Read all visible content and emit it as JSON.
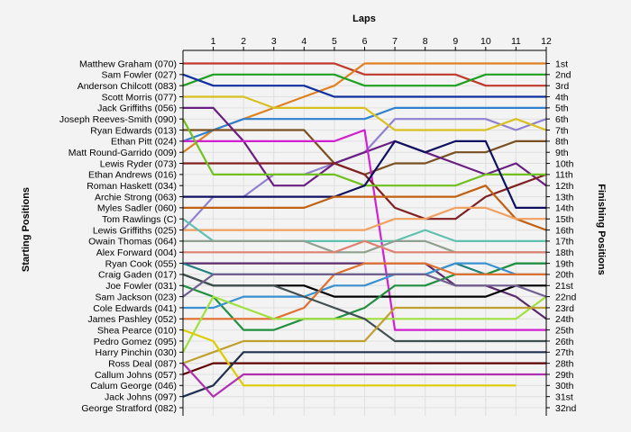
{
  "chart_data": {
    "type": "line",
    "title": "Laps",
    "xlabel": "Laps",
    "ylabel_left": "Starting Positions",
    "ylabel_right": "Finishing Positions",
    "laps": [
      0,
      1,
      2,
      3,
      4,
      5,
      6,
      7,
      8,
      9,
      10,
      11,
      12
    ],
    "lap_ticks": [
      "1",
      "2",
      "3",
      "4",
      "5",
      "6",
      "7",
      "8",
      "9",
      "10",
      "11",
      "12"
    ],
    "starting_positions": [
      "Matthew Graham (070)",
      "Sam Fowler (027)",
      "Anderson Chilcott (083)",
      "Scott Morris (077)",
      "Jack Griffiths (056)",
      "Joseph Reeves-Smith (090)",
      "Ryan Edwards (013)",
      "Ethan Pitt (024)",
      "Matt Round-Garrido (009)",
      "Lewis Ryder (073)",
      "Ethan Andrews (016)",
      "Roman Haskett (034)",
      "Archie Strong (063)",
      "Myles Sadler (060)",
      "Tom Rawlings (C)",
      "Lewis Griffiths (025)",
      "Owain Thomas (064)",
      "Alex Forward (004)",
      "Ryan Cook (055)",
      "Craig Gaden (017)",
      "Joe Fowler (031)",
      "Sam Jackson (023)",
      "Cole Edwards (041)",
      "James Pashley (052)",
      "Shea Pearce (010)",
      "Pedro Gomez (095)",
      "Harry Pinchin (030)",
      "Ross Deal (087)",
      "Callum Johns (057)",
      "Calum George (046)",
      "Jack Johns (097)",
      "George Stratford (082)"
    ],
    "finishing_positions": [
      "1st",
      "2nd",
      "3rd",
      "4th",
      "5th",
      "6th",
      "7th",
      "8th",
      "9th",
      "10th",
      "11th",
      "12th",
      "13th",
      "14th",
      "15th",
      "16th",
      "17th",
      "18th",
      "19th",
      "20th",
      "21st",
      "22nd",
      "23rd",
      "24th",
      "25th",
      "26th",
      "27th",
      "28th",
      "29th",
      "30th",
      "31st",
      "32nd"
    ],
    "series": [
      {
        "color": "#c0392b",
        "positions": [
          1,
          1,
          1,
          1,
          1,
          1,
          2,
          2,
          2,
          2,
          3,
          3,
          3
        ]
      },
      {
        "color": "#e08020",
        "positions": [
          9,
          7,
          6,
          5,
          4,
          3,
          1,
          1,
          1,
          1,
          1,
          1,
          1
        ]
      },
      {
        "color": "#20a020",
        "positions": [
          3,
          2,
          2,
          2,
          2,
          2,
          3,
          3,
          3,
          3,
          2,
          2,
          2
        ]
      },
      {
        "color": "#1030a0",
        "positions": [
          2,
          3,
          3,
          3,
          3,
          4,
          4,
          4,
          4,
          4,
          4,
          4,
          4
        ]
      },
      {
        "color": "#3080d0",
        "positions": [
          8,
          7,
          6,
          6,
          6,
          6,
          6,
          5,
          5,
          5,
          5,
          5,
          5
        ]
      },
      {
        "color": "#9080d0",
        "positions": [
          16,
          13,
          13,
          11,
          11,
          10,
          9,
          6,
          6,
          6,
          6,
          7,
          6
        ]
      },
      {
        "color": "#d8c020",
        "positions": [
          4,
          4,
          4,
          5,
          5,
          5,
          5,
          7,
          7,
          7,
          7,
          6,
          7
        ]
      },
      {
        "color": "#7a5020",
        "positions": [
          7,
          7,
          7,
          7,
          7,
          10,
          11,
          10,
          10,
          9,
          9,
          8,
          8
        ]
      },
      {
        "color": "#6a2080",
        "positions": [
          5,
          5,
          8,
          12,
          12,
          10,
          9,
          8,
          9,
          10,
          11,
          10,
          12
        ]
      },
      {
        "color": "#d020d0",
        "positions": [
          8,
          8,
          8,
          8,
          8,
          8,
          7,
          25,
          25,
          25,
          25,
          25,
          25
        ]
      },
      {
        "color": "#802020",
        "positions": [
          10,
          10,
          10,
          10,
          10,
          10,
          11,
          14,
          15,
          15,
          13,
          12,
          11
        ]
      },
      {
        "color": "#70c020",
        "positions": [
          6,
          11,
          11,
          11,
          11,
          11,
          12,
          12,
          12,
          12,
          11,
          11,
          11
        ]
      },
      {
        "color": "#101060",
        "positions": [
          13,
          13,
          13,
          13,
          13,
          13,
          12,
          8,
          9,
          8,
          8,
          14,
          14
        ]
      },
      {
        "color": "#c06010",
        "positions": [
          14,
          14,
          14,
          14,
          14,
          13,
          13,
          13,
          13,
          13,
          12,
          15,
          16
        ]
      },
      {
        "color": "#f0a060",
        "positions": [
          16,
          16,
          16,
          16,
          16,
          16,
          16,
          15,
          15,
          14,
          14,
          15,
          15
        ]
      },
      {
        "color": "#60c0b0",
        "positions": [
          15,
          17,
          17,
          17,
          17,
          17,
          17,
          17,
          16,
          17,
          17,
          17,
          17
        ]
      },
      {
        "color": "#90a090",
        "positions": [
          17,
          17,
          17,
          17,
          17,
          18,
          18,
          17,
          17,
          18,
          18,
          18,
          18
        ]
      },
      {
        "color": "#e08070",
        "positions": [
          18,
          18,
          18,
          18,
          18,
          18,
          17,
          18,
          18,
          18,
          18,
          18,
          18
        ]
      },
      {
        "color": "#5a2a6a",
        "positions": [
          19,
          19,
          19,
          19,
          19,
          19,
          19,
          19,
          19,
          21,
          21,
          22,
          24
        ]
      },
      {
        "color": "#208080",
        "positions": [
          19,
          20,
          20,
          20,
          20,
          20,
          20,
          20,
          20,
          19,
          20,
          19,
          19
        ]
      },
      {
        "color": "#000000",
        "positions": [
          20,
          21,
          21,
          21,
          21,
          22,
          22,
          22,
          22,
          22,
          22,
          21,
          21
        ]
      },
      {
        "color": "#209040",
        "positions": [
          21,
          22,
          25,
          25,
          24,
          24,
          23,
          21,
          21,
          20,
          20,
          19,
          19
        ]
      },
      {
        "color": "#3a90d0",
        "positions": [
          23,
          23,
          22,
          22,
          22,
          21,
          21,
          20,
          20,
          19,
          19,
          20,
          20
        ]
      },
      {
        "color": "#e07030",
        "positions": [
          24,
          24,
          24,
          24,
          23,
          20,
          19,
          19,
          19,
          20,
          20,
          20,
          20
        ]
      },
      {
        "color": "#a0e040",
        "positions": [
          27,
          22,
          23,
          24,
          24,
          24,
          24,
          24,
          24,
          24,
          24,
          24,
          22
        ]
      },
      {
        "color": "#405050",
        "positions": [
          20,
          21,
          21,
          21,
          22,
          23,
          24,
          26,
          26,
          26,
          26,
          26,
          26
        ]
      },
      {
        "color": "#c0a030",
        "positions": [
          28,
          27,
          26,
          26,
          26,
          26,
          26,
          23,
          23,
          23,
          23,
          23,
          23
        ]
      },
      {
        "color": "#600000",
        "positions": [
          29,
          28,
          28,
          28,
          28,
          28,
          28,
          28,
          28,
          28,
          28,
          28,
          28
        ]
      },
      {
        "color": "#ddcc00",
        "positions": [
          25,
          26,
          30,
          30,
          30,
          30,
          30,
          30,
          30,
          30,
          30,
          30,
          null
        ]
      },
      {
        "color": "#203050",
        "positions": [
          31,
          30,
          27,
          27,
          27,
          27,
          27,
          27,
          27,
          27,
          27,
          27,
          27
        ]
      },
      {
        "color": "#b030b0",
        "positions": [
          28,
          31,
          29,
          29,
          29,
          29,
          29,
          29,
          29,
          29,
          29,
          29,
          29
        ]
      },
      {
        "color": "#706090",
        "positions": [
          22,
          20,
          20,
          20,
          20,
          20,
          20,
          20,
          20,
          21,
          21,
          21,
          22
        ]
      }
    ]
  }
}
